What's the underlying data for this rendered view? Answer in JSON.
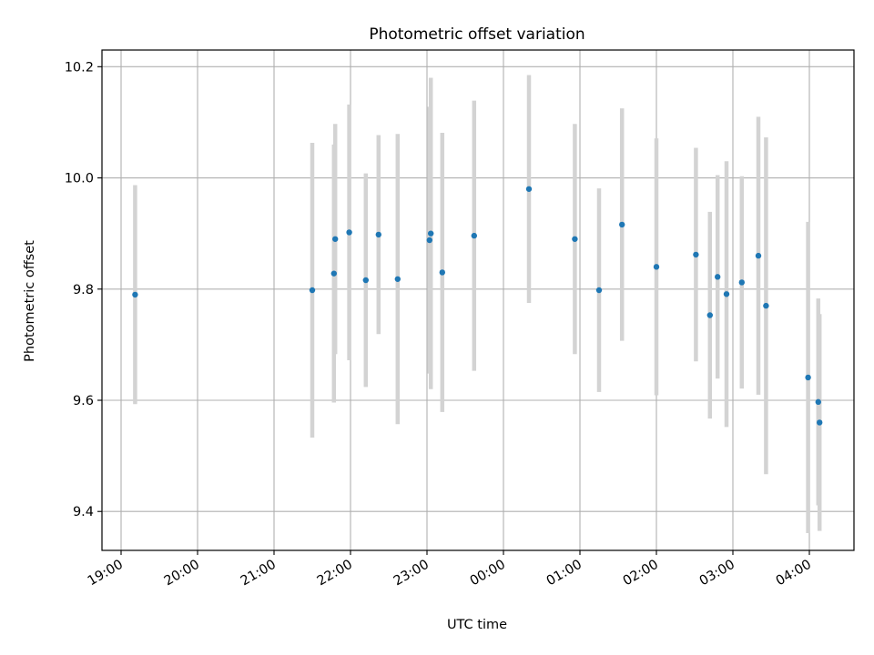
{
  "chart_data": {
    "type": "scatter",
    "title": "Photometric offset variation",
    "xlabel": "UTC time",
    "ylabel": "Photometric offset",
    "x_axis_type": "time",
    "xlim": [
      "18:45",
      "04:35"
    ],
    "ylim": [
      9.33,
      10.23
    ],
    "x_ticks": [
      "19:00",
      "20:00",
      "21:00",
      "22:00",
      "23:00",
      "00:00",
      "01:00",
      "02:00",
      "03:00",
      "04:00"
    ],
    "y_ticks": [
      "9.4",
      "9.6",
      "9.8",
      "10.0",
      "10.2"
    ],
    "grid": true,
    "legend": "none",
    "colors": {
      "point": "#1f77b4",
      "errorbar": "#d3d3d3",
      "grid": "#b0b0b0"
    },
    "points": [
      {
        "x": "19:11",
        "y": 9.79,
        "yerr": 0.197
      },
      {
        "x": "21:30",
        "y": 9.798,
        "yerr": 0.265
      },
      {
        "x": "21:47",
        "y": 9.828,
        "yerr": 0.232
      },
      {
        "x": "21:48",
        "y": 9.89,
        "yerr": 0.207
      },
      {
        "x": "21:59",
        "y": 9.902,
        "yerr": 0.23
      },
      {
        "x": "22:12",
        "y": 9.816,
        "yerr": 0.192
      },
      {
        "x": "22:22",
        "y": 9.898,
        "yerr": 0.179
      },
      {
        "x": "22:37",
        "y": 9.818,
        "yerr": 0.261
      },
      {
        "x": "23:02",
        "y": 9.888,
        "yerr": 0.24
      },
      {
        "x": "23:03",
        "y": 9.9,
        "yerr": 0.28
      },
      {
        "x": "23:12",
        "y": 9.83,
        "yerr": 0.251
      },
      {
        "x": "23:37",
        "y": 9.896,
        "yerr": 0.243
      },
      {
        "x": "00:20",
        "y": 9.98,
        "yerr": 0.205
      },
      {
        "x": "00:56",
        "y": 9.89,
        "yerr": 0.207
      },
      {
        "x": "01:15",
        "y": 9.798,
        "yerr": 0.183
      },
      {
        "x": "01:33",
        "y": 9.916,
        "yerr": 0.209
      },
      {
        "x": "02:00",
        "y": 9.84,
        "yerr": 0.231
      },
      {
        "x": "02:31",
        "y": 9.862,
        "yerr": 0.192
      },
      {
        "x": "02:42",
        "y": 9.753,
        "yerr": 0.186
      },
      {
        "x": "02:48",
        "y": 9.822,
        "yerr": 0.183
      },
      {
        "x": "02:55",
        "y": 9.791,
        "yerr": 0.239
      },
      {
        "x": "03:07",
        "y": 9.812,
        "yerr": 0.191
      },
      {
        "x": "03:20",
        "y": 9.86,
        "yerr": 0.25
      },
      {
        "x": "03:26",
        "y": 9.77,
        "yerr": 0.303
      },
      {
        "x": "03:59",
        "y": 9.641,
        "yerr": 0.28
      },
      {
        "x": "04:07",
        "y": 9.597,
        "yerr": 0.186
      },
      {
        "x": "04:08",
        "y": 9.56,
        "yerr": 0.195
      }
    ]
  }
}
